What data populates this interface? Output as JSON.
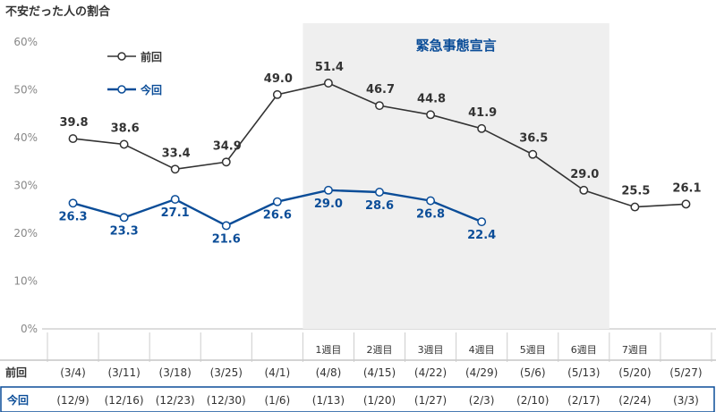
{
  "chart_data": {
    "type": "line",
    "title": "不安だった人の割合",
    "ylim": [
      0,
      60
    ],
    "yticks": [
      "0%",
      "10%",
      "20%",
      "30%",
      "40%",
      "50%",
      "60%"
    ],
    "shaded_region_label": "緊急事態宣言",
    "shaded_region": [
      5,
      11
    ],
    "week_labels": [
      "1週目",
      "2週目",
      "3週目",
      "4週目",
      "5週目",
      "6週目",
      "7週目"
    ],
    "row_labels": [
      "前回",
      "今回"
    ],
    "x_prev": [
      "(3/4)",
      "(3/11)",
      "(3/18)",
      "(3/25)",
      "(4/1)",
      "(4/8)",
      "(4/15)",
      "(4/22)",
      "(4/29)",
      "(5/6)",
      "(5/13)",
      "(5/20)",
      "(5/27)"
    ],
    "x_curr": [
      "(12/9)",
      "(12/16)",
      "(12/23)",
      "(12/30)",
      "(1/6)",
      "(1/13)",
      "(1/20)",
      "(1/27)",
      "(2/3)",
      "(2/10)",
      "(2/17)",
      "(2/24)",
      "(3/3)"
    ],
    "series": [
      {
        "name": "前回",
        "color": "#333333",
        "values": [
          39.8,
          38.6,
          33.4,
          34.9,
          49.0,
          51.4,
          46.7,
          44.8,
          41.9,
          36.5,
          29.0,
          25.5,
          26.1
        ],
        "labels": [
          "39.8",
          "38.6",
          "33.4",
          "34.9",
          "49.0",
          "51.4",
          "46.7",
          "44.8",
          "41.9",
          "36.5",
          "29.0",
          "25.5",
          "26.1"
        ]
      },
      {
        "name": "今回",
        "color": "#0b4d98",
        "values": [
          26.3,
          23.3,
          27.1,
          21.6,
          26.6,
          29.0,
          28.6,
          26.8,
          22.4
        ],
        "labels": [
          "26.3",
          "23.3",
          "27.1",
          "21.6",
          "26.6",
          "29.0",
          "28.6",
          "26.8",
          "22.4"
        ]
      }
    ]
  }
}
